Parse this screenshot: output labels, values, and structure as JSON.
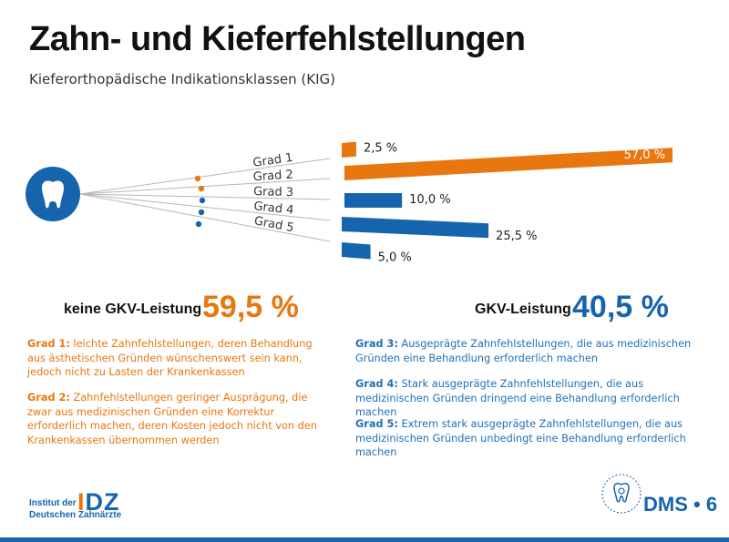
{
  "header": {
    "title": "Zahn- und Kieferfehlstellungen",
    "subtitle": "Kieferorthopädische Indikationsklassen (KIG)"
  },
  "colors": {
    "orange": "#e8770f",
    "blue": "#1764ae"
  },
  "chart_data": {
    "type": "bar",
    "categories": [
      "Grad 1",
      "Grad 2",
      "Grad 3",
      "Grad 4",
      "Grad 5"
    ],
    "values": [
      2.5,
      57.0,
      10.0,
      25.5,
      5.0
    ],
    "value_labels": [
      "2,5 %",
      "57,0 %",
      "10,0 %",
      "25,5 %",
      "5,0 %"
    ],
    "groups": [
      "orange",
      "orange",
      "blue",
      "blue",
      "blue"
    ],
    "icon": "tooth-icon"
  },
  "totals": {
    "left": {
      "label": "keine GKV-Leistung",
      "value": "59,5 %"
    },
    "right": {
      "label": "GKV-Leistung",
      "value": "40,5 %"
    }
  },
  "descriptions": [
    {
      "grade": "Grad 1:",
      "text": " leichte Zahnfehlstellungen, deren Behandlung aus ästhetischen Gründen wünschenswert sein kann, jedoch nicht zu Lasten der Krankenkassen"
    },
    {
      "grade": "Grad 2:",
      "text": " Zahnfehlstellungen geringer Ausprägung, die zwar aus medizinischen Gründen eine Korrektur erforderlich machen, deren Kosten jedoch nicht von den Krankenkassen übernommen werden"
    },
    {
      "grade": "Grad 3:",
      "text": " Ausgeprägte Zahnfehlstellungen, die aus medizinischen Gründen eine Behandlung erforderlich machen"
    },
    {
      "grade": "Grad 4:",
      "text": " Stark ausgeprägte Zahnfehlstellungen, die aus medizinischen Gründen dringend eine Behandlung erforderlich machen"
    },
    {
      "grade": "Grad 5:",
      "text": " Extrem stark ausgeprägte Zahnfehlstellungen, die aus medizinischen  Gründen unbedingt eine Behandlung erforderlich machen"
    }
  ],
  "footer": {
    "idz_name_line1": "Institut der",
    "idz_name_line2": "Deutschen Zahnärzte",
    "idz_logo_bar": "I",
    "idz_logo_rest": "DZ",
    "dms_logo": "DMS • 6"
  }
}
